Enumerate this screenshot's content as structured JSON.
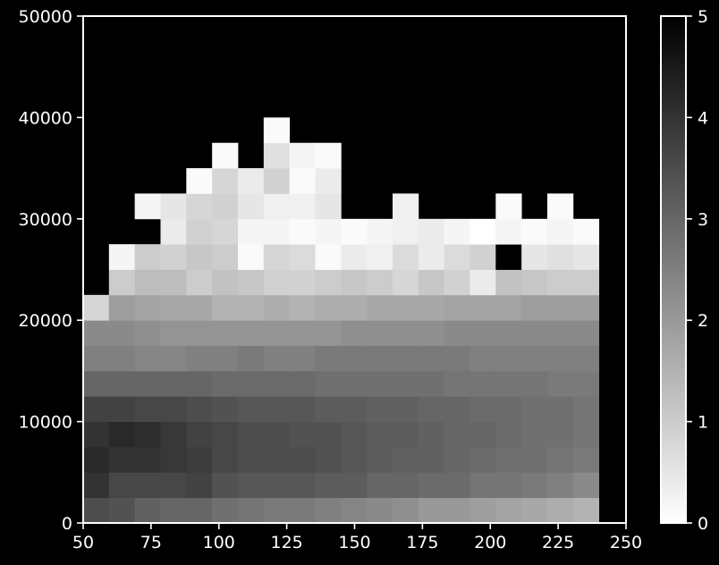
{
  "chart_data": {
    "type": "heatmap",
    "title": "",
    "xlabel": "",
    "ylabel": "",
    "xlim": [
      50,
      250
    ],
    "ylim": [
      0,
      50000
    ],
    "x_ticks": [
      "50",
      "75",
      "100",
      "125",
      "150",
      "175",
      "200",
      "225",
      "250"
    ],
    "y_ticks": [
      "0",
      "10000",
      "20000",
      "30000",
      "40000",
      "50000"
    ],
    "x_bin_edges": [
      50,
      59.5,
      69,
      78.5,
      88,
      97.5,
      107,
      116.5,
      126,
      135.5,
      145,
      154.5,
      164,
      173.5,
      183,
      192.5,
      202,
      211.5,
      221,
      230.5,
      240
    ],
    "y_bin_edges": [
      0,
      2500,
      5000,
      7500,
      10000,
      12500,
      15000,
      17500,
      20000,
      22500,
      25000,
      27500,
      30000,
      32500,
      35000,
      37500,
      40000
    ],
    "value_range": [
      0,
      5
    ],
    "colorbar": {
      "ticks": [
        "0",
        "1",
        "2",
        "3",
        "4",
        "5"
      ],
      "colormap": "gray_r"
    },
    "values": [
      [
        3.5,
        3.4,
        3.1,
        3.0,
        3.0,
        2.8,
        2.7,
        2.6,
        2.6,
        2.5,
        2.4,
        2.3,
        2.2,
        2.0,
        2.0,
        1.9,
        1.8,
        1.7,
        1.6,
        1.5
      ],
      [
        4.0,
        3.6,
        3.6,
        3.6,
        3.7,
        3.4,
        3.3,
        3.3,
        3.3,
        3.2,
        3.2,
        3.0,
        3.0,
        2.9,
        2.9,
        2.7,
        2.7,
        2.6,
        2.5,
        2.3
      ],
      [
        4.2,
        4.0,
        4.0,
        3.9,
        3.8,
        3.6,
        3.5,
        3.5,
        3.5,
        3.4,
        3.3,
        3.2,
        3.1,
        3.1,
        3.0,
        2.9,
        2.8,
        2.8,
        2.7,
        2.6
      ],
      [
        4.0,
        4.2,
        4.1,
        3.9,
        3.7,
        3.6,
        3.5,
        3.5,
        3.4,
        3.4,
        3.3,
        3.2,
        3.2,
        3.1,
        3.0,
        3.0,
        2.9,
        2.8,
        2.8,
        2.7
      ],
      [
        3.7,
        3.7,
        3.6,
        3.6,
        3.5,
        3.4,
        3.3,
        3.3,
        3.3,
        3.2,
        3.2,
        3.1,
        3.1,
        3.0,
        3.0,
        2.9,
        2.9,
        2.8,
        2.8,
        2.7
      ],
      [
        3.0,
        3.0,
        3.0,
        3.0,
        3.0,
        2.9,
        2.9,
        2.9,
        2.9,
        2.8,
        2.8,
        2.8,
        2.8,
        2.8,
        2.7,
        2.7,
        2.7,
        2.7,
        2.6,
        2.6
      ],
      [
        2.5,
        2.5,
        2.4,
        2.4,
        2.5,
        2.5,
        2.6,
        2.5,
        2.5,
        2.6,
        2.6,
        2.6,
        2.6,
        2.6,
        2.6,
        2.5,
        2.5,
        2.5,
        2.5,
        2.5
      ],
      [
        2.3,
        2.3,
        2.2,
        2.1,
        2.1,
        2.1,
        2.1,
        2.1,
        2.1,
        2.1,
        2.2,
        2.2,
        2.2,
        2.2,
        2.3,
        2.3,
        2.3,
        2.3,
        2.3,
        2.3
      ],
      [
        0.8,
        1.9,
        1.8,
        1.7,
        1.7,
        1.5,
        1.5,
        1.6,
        1.5,
        1.6,
        1.6,
        1.7,
        1.7,
        1.7,
        1.8,
        1.8,
        1.8,
        1.9,
        1.9,
        1.9
      ],
      [
        null,
        1.0,
        1.3,
        1.3,
        1.0,
        1.2,
        1.1,
        0.9,
        0.9,
        1.0,
        1.1,
        1.0,
        0.8,
        1.1,
        0.9,
        0.4,
        1.2,
        1.1,
        1.0,
        1.0
      ],
      [
        null,
        0.2,
        1.0,
        0.9,
        1.1,
        1.0,
        0.1,
        0.8,
        0.7,
        0.1,
        0.4,
        0.3,
        0.7,
        0.4,
        0.7,
        0.9,
        5.0,
        0.5,
        0.6,
        0.5
      ],
      [
        null,
        null,
        null,
        0.4,
        0.9,
        0.8,
        0.2,
        0.2,
        0.1,
        0.2,
        0.1,
        0.2,
        0.3,
        0.4,
        0.2,
        0.0,
        0.2,
        0.1,
        0.2,
        0.1
      ],
      [
        null,
        null,
        0.2,
        0.5,
        0.8,
        0.9,
        0.5,
        0.3,
        0.3,
        0.5,
        null,
        null,
        0.3,
        null,
        null,
        null,
        0.1,
        null,
        0.1,
        null
      ],
      [
        null,
        null,
        null,
        null,
        0.1,
        0.8,
        0.4,
        0.9,
        0.1,
        0.4,
        null,
        null,
        null,
        null,
        null,
        null,
        null,
        null,
        null,
        null
      ],
      [
        null,
        null,
        null,
        null,
        null,
        0.1,
        null,
        0.6,
        0.2,
        0.1,
        null,
        null,
        null,
        null,
        null,
        null,
        null,
        null,
        null,
        null
      ],
      [
        null,
        null,
        null,
        null,
        null,
        null,
        null,
        0.1,
        null,
        null,
        null,
        null,
        null,
        null,
        null,
        null,
        null,
        null,
        null,
        null
      ]
    ]
  }
}
